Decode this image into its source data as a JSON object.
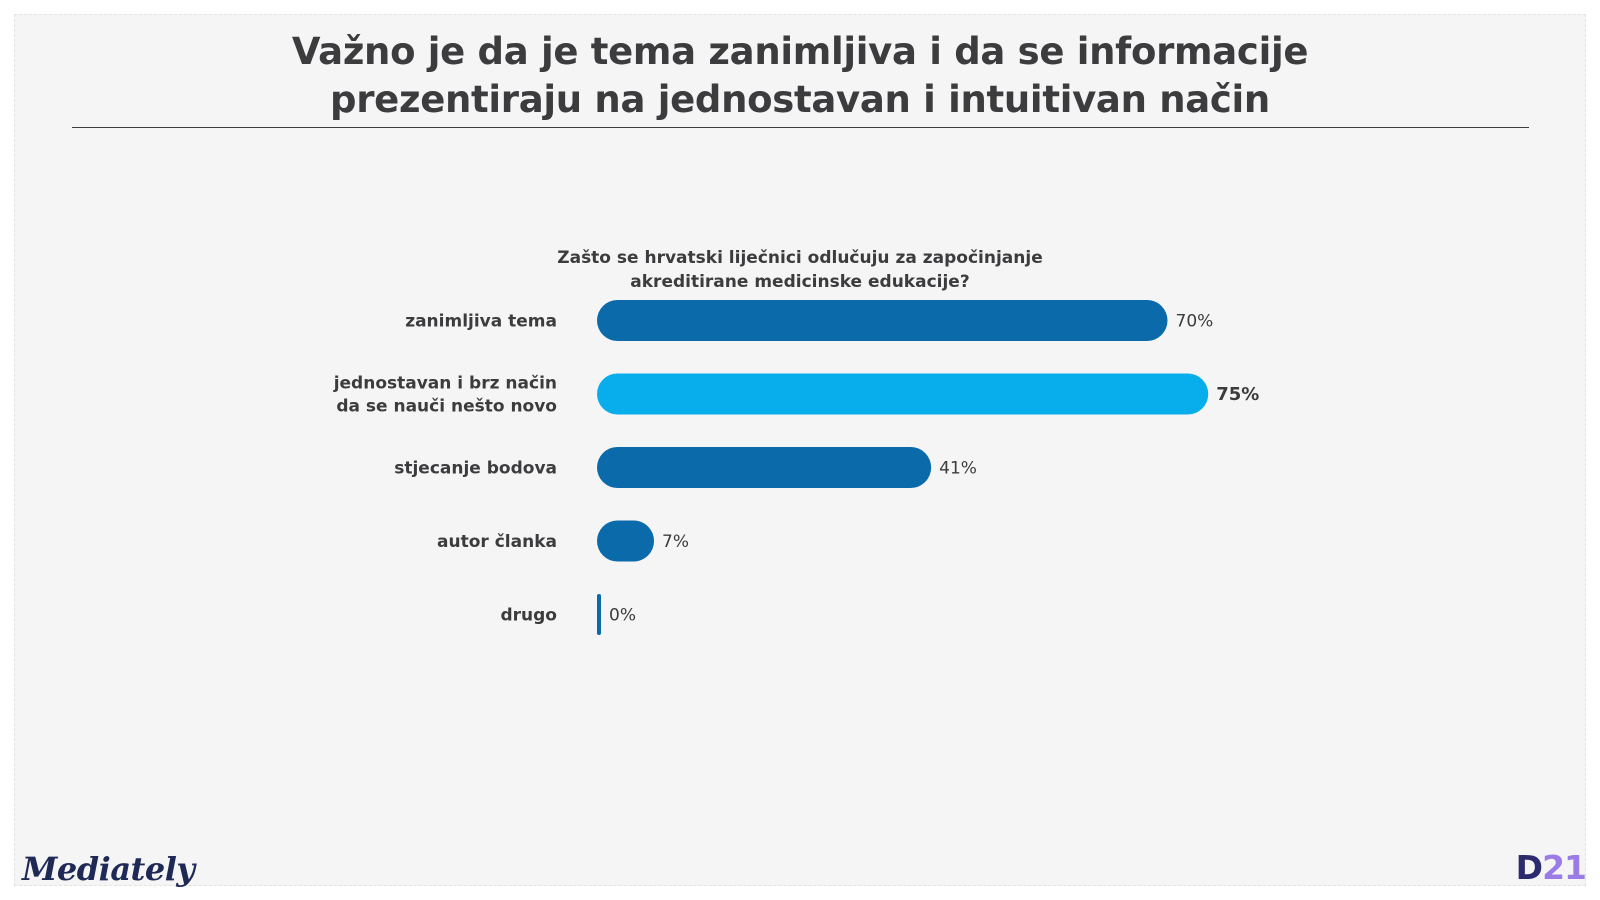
{
  "title_line1": "Važno je da je tema zanimljiva i da se informacije",
  "title_line2": "prezentiraju na jednostavan i intuitivan način",
  "question_line1": "Zašto se hrvatski liječnici odlučuju za započinjanje",
  "question_line2": "akreditirane medicinske edukacije?",
  "brand": "Mediately",
  "logo": {
    "part1": "D",
    "part2": "21"
  },
  "colors": {
    "dark_blue": "#0a6aaa",
    "light_blue": "#08aeeb",
    "text": "#3c3c3e"
  },
  "chart_data": {
    "type": "bar",
    "orientation": "horizontal",
    "categories": [
      [
        "zanimljiva tema"
      ],
      [
        "jednostavan i brz način",
        "da se nauči nešto novo"
      ],
      [
        "stjecanje bodova"
      ],
      [
        "autor članka"
      ],
      [
        "drugo"
      ]
    ],
    "values": [
      70,
      75,
      41,
      7,
      0
    ],
    "labels": [
      "70%",
      "75%",
      "41%",
      "7%",
      "0%"
    ],
    "highlight_index": 1,
    "xlim": [
      0,
      100
    ],
    "unit": "%"
  }
}
